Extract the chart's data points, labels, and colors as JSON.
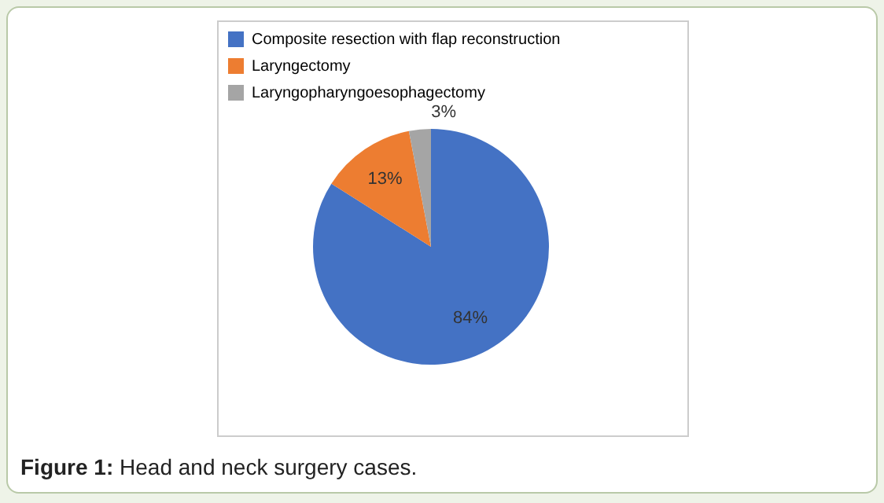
{
  "chart_data": {
    "type": "pie",
    "categories": [
      "Composite resection with flap reconstruction",
      "Laryngectomy",
      "Laryngopharyngoesophagectomy"
    ],
    "values": [
      84,
      13,
      3
    ],
    "colors": [
      "#4472c4",
      "#ed7d31",
      "#a5a5a5"
    ],
    "value_labels": [
      "84%",
      "13%",
      "3%"
    ],
    "legend": "top",
    "annotations": [
      "Figure 1: Head and neck surgery cases."
    ]
  }
}
